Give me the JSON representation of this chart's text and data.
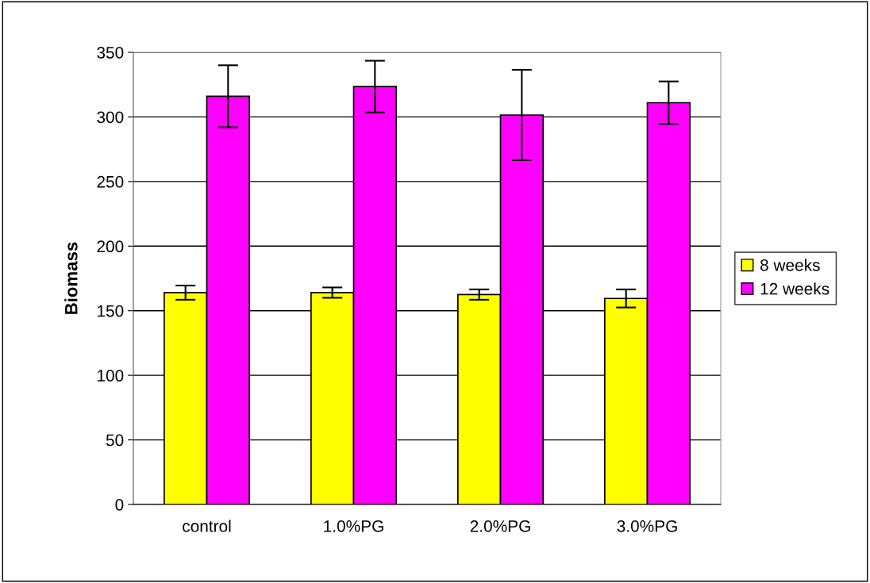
{
  "chart_data": {
    "type": "bar",
    "ylabel": "Biomass",
    "categories": [
      "control",
      "1.0%PG",
      "2.0%PG",
      "3.0%PG"
    ],
    "series": [
      {
        "name": "8 weeks",
        "color": "#ffff00",
        "values": [
          164,
          164,
          162.5,
          159.5
        ],
        "errors": [
          5.5,
          4,
          4,
          7
        ]
      },
      {
        "name": "12 weeks",
        "color": "#ff00ff",
        "values": [
          316,
          323.5,
          301.5,
          311
        ],
        "errors": [
          24,
          20,
          35,
          16.5
        ]
      }
    ],
    "ylim": [
      0,
      350
    ],
    "yticks": [
      0,
      50,
      100,
      150,
      200,
      250,
      300,
      350
    ],
    "grid": "y",
    "legend": "right"
  }
}
